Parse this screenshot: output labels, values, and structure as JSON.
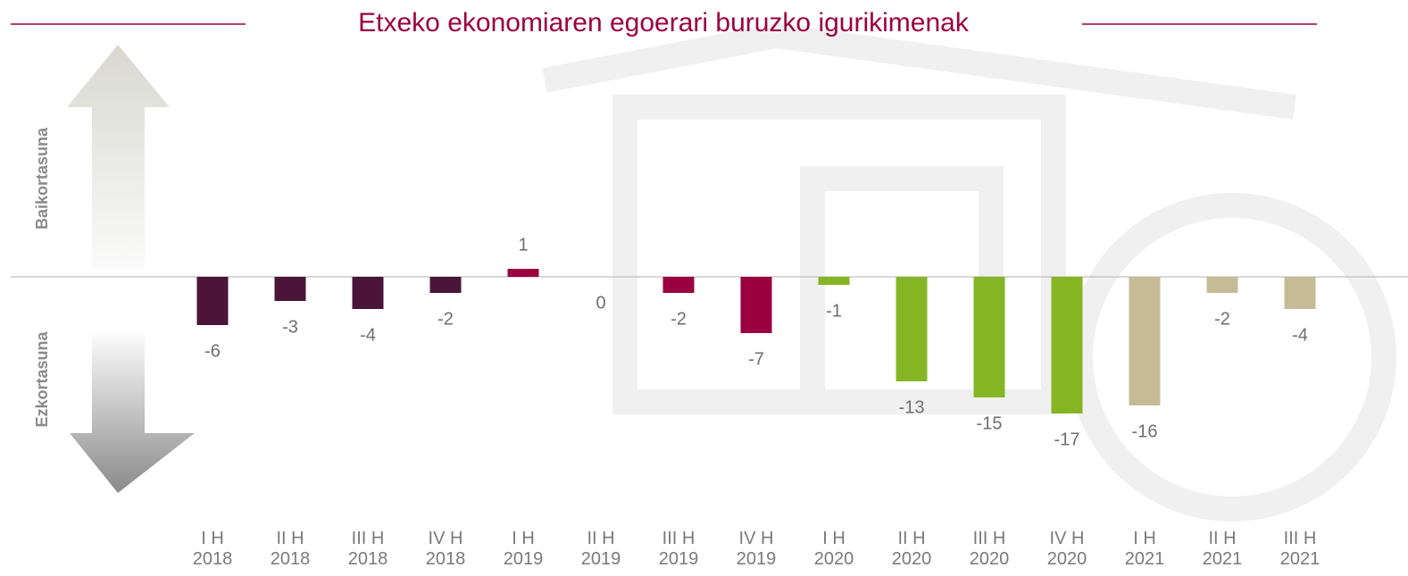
{
  "chart_data": {
    "type": "bar",
    "title": "Etxeko ekonomiaren egoerari buruzko igurikimenak",
    "annotations": [
      "Baikortasuna",
      "Ezkortasuna"
    ],
    "categories": [
      "I H\n2018",
      "II H\n2018",
      "III H\n2018",
      "IV H\n2018",
      "I H\n2019",
      "II H\n2019",
      "III H\n2019",
      "IV H\n2019",
      "I H\n2020",
      "II H\n2020",
      "III H\n2020",
      "IV H\n2020",
      "I H\n2021",
      "II H\n2021",
      "III H\n2021"
    ],
    "values": [
      -6,
      -3,
      -4,
      -2,
      1,
      0,
      -2,
      -7,
      -1,
      -13,
      -15,
      -17,
      -16,
      -2,
      -4
    ],
    "colors": [
      "#4a1538",
      "#4a1538",
      "#4a1538",
      "#4a1538",
      "#9b0040",
      "#9b0040",
      "#9b0040",
      "#9b0040",
      "#86b524",
      "#86b524",
      "#86b524",
      "#86b524",
      "#c5bc96",
      "#c5bc96",
      "#c5bc96"
    ],
    "ylim": [
      -20,
      12
    ]
  }
}
